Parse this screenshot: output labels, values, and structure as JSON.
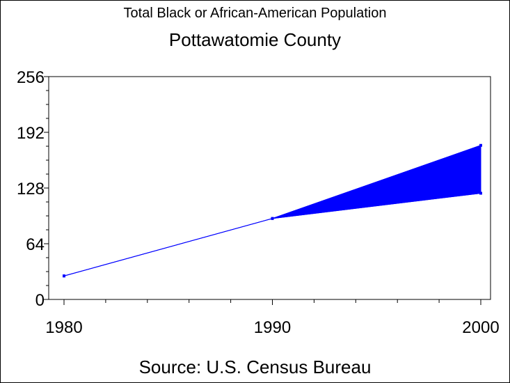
{
  "title": "Total Black or African-American Population",
  "subtitle": "Pottawatomie County",
  "source": "Source: U.S. Census Bureau",
  "colors": {
    "series": "#0000ff",
    "axis": "#000000",
    "background": "#ffffff"
  },
  "chart_data": {
    "type": "area",
    "title": "Total Black or African-American Population",
    "subtitle": "Pottawatomie County",
    "xlim": [
      1980,
      2000
    ],
    "ylim": [
      0,
      256
    ],
    "x_ticks": [
      "1980",
      "1990",
      "2000"
    ],
    "y_ticks": [
      "0",
      "64",
      "128",
      "192",
      "256"
    ],
    "grid": false,
    "series": [
      {
        "x": [
          1980,
          1990,
          2000
        ],
        "values": [
          27,
          93,
          177
        ]
      },
      {
        "x": [
          1980,
          1990,
          2000
        ],
        "values": [
          27,
          93,
          122
        ]
      }
    ]
  }
}
